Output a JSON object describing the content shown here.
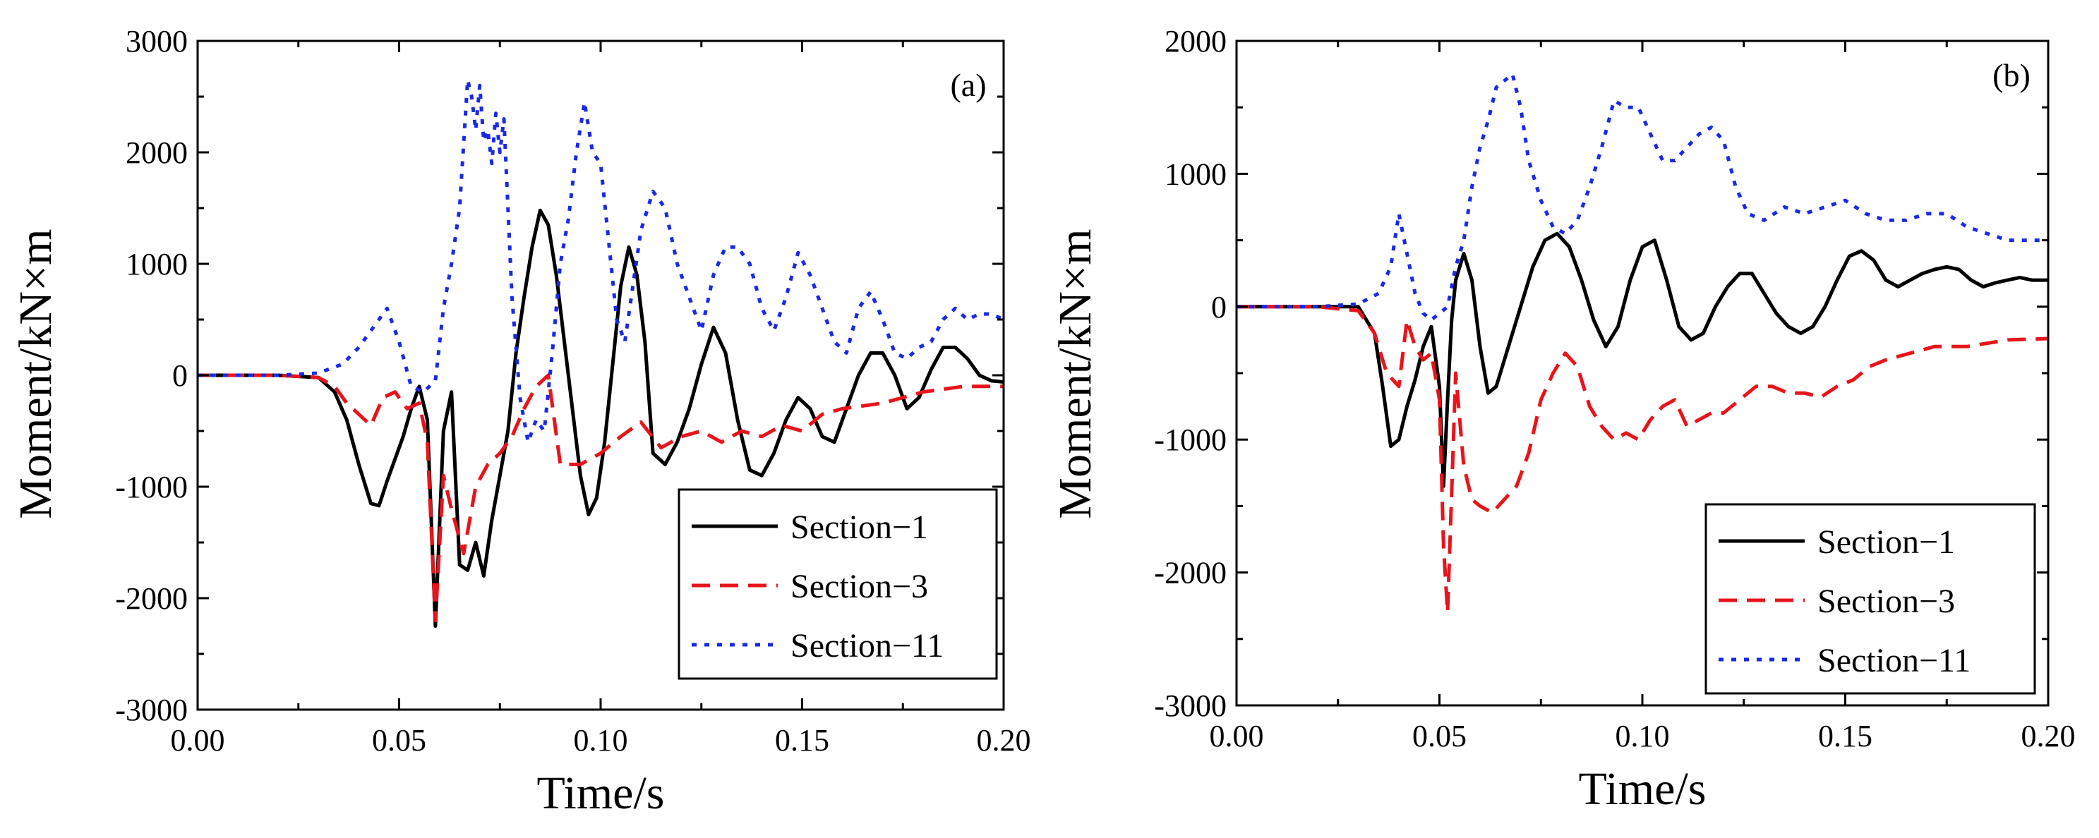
{
  "figure": {
    "panels": [
      "(a)",
      "(b)"
    ]
  },
  "chart_data": [
    {
      "type": "line",
      "panel_label": "(a)",
      "xlabel": "Time/s",
      "ylabel": "Moment/kN×m",
      "xlim": [
        0.0,
        0.2
      ],
      "ylim": [
        -3000,
        3000
      ],
      "xticks": [
        0.0,
        0.05,
        0.1,
        0.15,
        0.2
      ],
      "xtick_labels": [
        "0.00",
        "0.05",
        "0.10",
        "0.15",
        "0.20"
      ],
      "yticks": [
        -3000,
        -2000,
        -1000,
        0,
        1000,
        2000,
        3000
      ],
      "ytick_labels": [
        "-3000",
        "-2000",
        "-1000",
        "0",
        "1000",
        "2000",
        "3000"
      ],
      "legend_position": "bottom-right",
      "series": [
        {
          "name": "Section−1",
          "color": "#000000",
          "style": "solid",
          "x": [
            0,
            0.02,
            0.03,
            0.034,
            0.037,
            0.04,
            0.043,
            0.045,
            0.047,
            0.049,
            0.051,
            0.053,
            0.055,
            0.057,
            0.059,
            0.061,
            0.063,
            0.065,
            0.067,
            0.069,
            0.071,
            0.073,
            0.075,
            0.077,
            0.079,
            0.081,
            0.083,
            0.085,
            0.087,
            0.089,
            0.091,
            0.093,
            0.095,
            0.097,
            0.099,
            0.101,
            0.103,
            0.105,
            0.107,
            0.109,
            0.111,
            0.113,
            0.116,
            0.119,
            0.122,
            0.125,
            0.128,
            0.131,
            0.134,
            0.137,
            0.14,
            0.143,
            0.146,
            0.149,
            0.152,
            0.155,
            0.158,
            0.161,
            0.164,
            0.167,
            0.17,
            0.173,
            0.176,
            0.179,
            0.182,
            0.185,
            0.188,
            0.191,
            0.194,
            0.197,
            0.2
          ],
          "values": [
            0,
            0,
            -20,
            -150,
            -400,
            -800,
            -1150,
            -1170,
            -950,
            -750,
            -550,
            -300,
            -100,
            -400,
            -2250,
            -500,
            -150,
            -1700,
            -1750,
            -1500,
            -1800,
            -1300,
            -900,
            -500,
            200,
            700,
            1150,
            1480,
            1350,
            900,
            300,
            -300,
            -900,
            -1250,
            -1100,
            -600,
            100,
            800,
            1150,
            900,
            300,
            -700,
            -800,
            -600,
            -300,
            100,
            430,
            200,
            -400,
            -850,
            -900,
            -700,
            -400,
            -200,
            -300,
            -550,
            -600,
            -300,
            0,
            200,
            200,
            0,
            -300,
            -200,
            50,
            250,
            250,
            150,
            0,
            -50,
            -60
          ]
        },
        {
          "name": "Section−3",
          "color": "#e8141b",
          "style": "dash",
          "x": [
            0,
            0.02,
            0.03,
            0.034,
            0.037,
            0.04,
            0.043,
            0.046,
            0.049,
            0.052,
            0.055,
            0.057,
            0.059,
            0.061,
            0.063,
            0.066,
            0.069,
            0.072,
            0.075,
            0.078,
            0.081,
            0.084,
            0.087,
            0.09,
            0.095,
            0.1,
            0.105,
            0.11,
            0.115,
            0.12,
            0.125,
            0.13,
            0.135,
            0.14,
            0.145,
            0.15,
            0.155,
            0.16,
            0.17,
            0.18,
            0.19,
            0.2
          ],
          "values": [
            0,
            0,
            -20,
            -100,
            -250,
            -350,
            -450,
            -200,
            -150,
            -300,
            -250,
            -600,
            -2200,
            -900,
            -1200,
            -1600,
            -1000,
            -800,
            -700,
            -550,
            -300,
            -100,
            0,
            -800,
            -800,
            -700,
            -550,
            -420,
            -650,
            -550,
            -500,
            -600,
            -500,
            -550,
            -450,
            -500,
            -350,
            -300,
            -250,
            -150,
            -100,
            -100
          ]
        },
        {
          "name": "Section−11",
          "color": "#1a28e8",
          "style": "dot",
          "x": [
            0,
            0.02,
            0.03,
            0.036,
            0.04,
            0.044,
            0.047,
            0.05,
            0.053,
            0.056,
            0.059,
            0.061,
            0.063,
            0.065,
            0.067,
            0.068,
            0.069,
            0.07,
            0.071,
            0.072,
            0.073,
            0.074,
            0.075,
            0.076,
            0.077,
            0.078,
            0.08,
            0.082,
            0.084,
            0.086,
            0.088,
            0.09,
            0.092,
            0.094,
            0.096,
            0.098,
            0.1,
            0.102,
            0.104,
            0.106,
            0.108,
            0.11,
            0.113,
            0.116,
            0.119,
            0.122,
            0.125,
            0.128,
            0.131,
            0.134,
            0.137,
            0.14,
            0.143,
            0.146,
            0.149,
            0.152,
            0.155,
            0.158,
            0.161,
            0.164,
            0.167,
            0.17,
            0.173,
            0.176,
            0.179,
            0.182,
            0.185,
            0.188,
            0.191,
            0.194,
            0.197,
            0.2
          ],
          "values": [
            0,
            0,
            20,
            100,
            250,
            450,
            600,
            300,
            -100,
            -150,
            -50,
            600,
            1000,
            1500,
            2650,
            2500,
            2200,
            2600,
            2100,
            2200,
            1900,
            2350,
            2000,
            2300,
            1500,
            700,
            -200,
            -600,
            -400,
            -500,
            200,
            1000,
            1400,
            2000,
            2450,
            2000,
            1900,
            1200,
            500,
            300,
            800,
            1300,
            1650,
            1500,
            1000,
            700,
            400,
            900,
            1150,
            1150,
            1000,
            600,
            400,
            700,
            1100,
            900,
            600,
            300,
            200,
            600,
            750,
            500,
            200,
            150,
            250,
            300,
            500,
            600,
            500,
            550,
            550,
            500
          ]
        }
      ]
    },
    {
      "type": "line",
      "panel_label": "(b)",
      "xlabel": "Time/s",
      "ylabel": "Moment/kN×m",
      "xlim": [
        0.0,
        0.2
      ],
      "ylim": [
        -3000,
        2000
      ],
      "xticks": [
        0.0,
        0.05,
        0.1,
        0.15,
        0.2
      ],
      "xtick_labels": [
        "0.00",
        "0.05",
        "0.10",
        "0.15",
        "0.20"
      ],
      "yticks": [
        -3000,
        -2000,
        -1000,
        0,
        1000,
        2000
      ],
      "ytick_labels": [
        "-3000",
        "-2000",
        "-1000",
        "0",
        "1000",
        "2000"
      ],
      "legend_position": "bottom-right",
      "series": [
        {
          "name": "Section−1",
          "color": "#000000",
          "style": "solid",
          "x": [
            0,
            0.02,
            0.03,
            0.034,
            0.036,
            0.038,
            0.04,
            0.042,
            0.044,
            0.046,
            0.048,
            0.05,
            0.051,
            0.052,
            0.053,
            0.054,
            0.056,
            0.058,
            0.06,
            0.062,
            0.064,
            0.066,
            0.068,
            0.07,
            0.073,
            0.076,
            0.079,
            0.082,
            0.085,
            0.088,
            0.091,
            0.094,
            0.097,
            0.1,
            0.103,
            0.106,
            0.109,
            0.112,
            0.115,
            0.118,
            0.121,
            0.124,
            0.127,
            0.13,
            0.133,
            0.136,
            0.139,
            0.142,
            0.145,
            0.148,
            0.151,
            0.154,
            0.157,
            0.16,
            0.163,
            0.166,
            0.169,
            0.172,
            0.175,
            0.178,
            0.181,
            0.184,
            0.187,
            0.19,
            0.193,
            0.196,
            0.2
          ],
          "values": [
            0,
            0,
            0,
            -200,
            -600,
            -1050,
            -1000,
            -750,
            -550,
            -300,
            -150,
            -600,
            -1350,
            -700,
            -100,
            200,
            400,
            200,
            -300,
            -650,
            -600,
            -400,
            -200,
            0,
            300,
            500,
            550,
            450,
            200,
            -100,
            -300,
            -150,
            200,
            450,
            500,
            200,
            -150,
            -250,
            -200,
            0,
            150,
            250,
            250,
            100,
            -50,
            -150,
            -200,
            -150,
            0,
            200,
            380,
            420,
            350,
            200,
            150,
            200,
            250,
            280,
            300,
            280,
            200,
            150,
            180,
            200,
            220,
            200,
            200
          ]
        },
        {
          "name": "Section−3",
          "color": "#e8141b",
          "style": "dash",
          "x": [
            0,
            0.02,
            0.03,
            0.034,
            0.037,
            0.04,
            0.042,
            0.044,
            0.046,
            0.048,
            0.05,
            0.051,
            0.052,
            0.053,
            0.054,
            0.056,
            0.058,
            0.06,
            0.063,
            0.066,
            0.069,
            0.072,
            0.075,
            0.078,
            0.081,
            0.084,
            0.087,
            0.09,
            0.093,
            0.096,
            0.099,
            0.102,
            0.105,
            0.108,
            0.111,
            0.114,
            0.117,
            0.12,
            0.124,
            0.128,
            0.132,
            0.136,
            0.14,
            0.144,
            0.148,
            0.152,
            0.156,
            0.16,
            0.166,
            0.172,
            0.18,
            0.19,
            0.2
          ],
          "values": [
            0,
            0,
            -30,
            -200,
            -500,
            -600,
            -100,
            -300,
            -400,
            -350,
            -700,
            -1800,
            -2300,
            -1400,
            -500,
            -1200,
            -1450,
            -1500,
            -1550,
            -1450,
            -1350,
            -1100,
            -700,
            -500,
            -350,
            -450,
            -750,
            -900,
            -1000,
            -950,
            -1000,
            -850,
            -750,
            -700,
            -900,
            -850,
            -800,
            -800,
            -700,
            -600,
            -600,
            -650,
            -650,
            -680,
            -600,
            -550,
            -450,
            -400,
            -350,
            -300,
            -300,
            -250,
            -240
          ]
        },
        {
          "name": "Section−11",
          "color": "#1a28e8",
          "style": "dot",
          "x": [
            0,
            0.02,
            0.03,
            0.035,
            0.038,
            0.04,
            0.042,
            0.044,
            0.046,
            0.048,
            0.05,
            0.052,
            0.054,
            0.056,
            0.058,
            0.06,
            0.062,
            0.064,
            0.066,
            0.068,
            0.07,
            0.072,
            0.075,
            0.078,
            0.081,
            0.084,
            0.087,
            0.09,
            0.093,
            0.096,
            0.099,
            0.102,
            0.105,
            0.108,
            0.111,
            0.114,
            0.117,
            0.12,
            0.123,
            0.126,
            0.13,
            0.135,
            0.14,
            0.145,
            0.15,
            0.155,
            0.16,
            0.165,
            0.17,
            0.175,
            0.18,
            0.185,
            0.19,
            0.195,
            0.2
          ],
          "values": [
            0,
            0,
            20,
            100,
            300,
            700,
            400,
            100,
            -50,
            -100,
            -50,
            0,
            300,
            500,
            900,
            1200,
            1400,
            1650,
            1700,
            1750,
            1500,
            1100,
            800,
            600,
            550,
            650,
            900,
            1200,
            1550,
            1500,
            1500,
            1300,
            1100,
            1100,
            1200,
            1300,
            1350,
            1250,
            900,
            700,
            650,
            750,
            700,
            750,
            800,
            700,
            650,
            650,
            700,
            700,
            600,
            550,
            500,
            500,
            500
          ]
        }
      ]
    }
  ]
}
